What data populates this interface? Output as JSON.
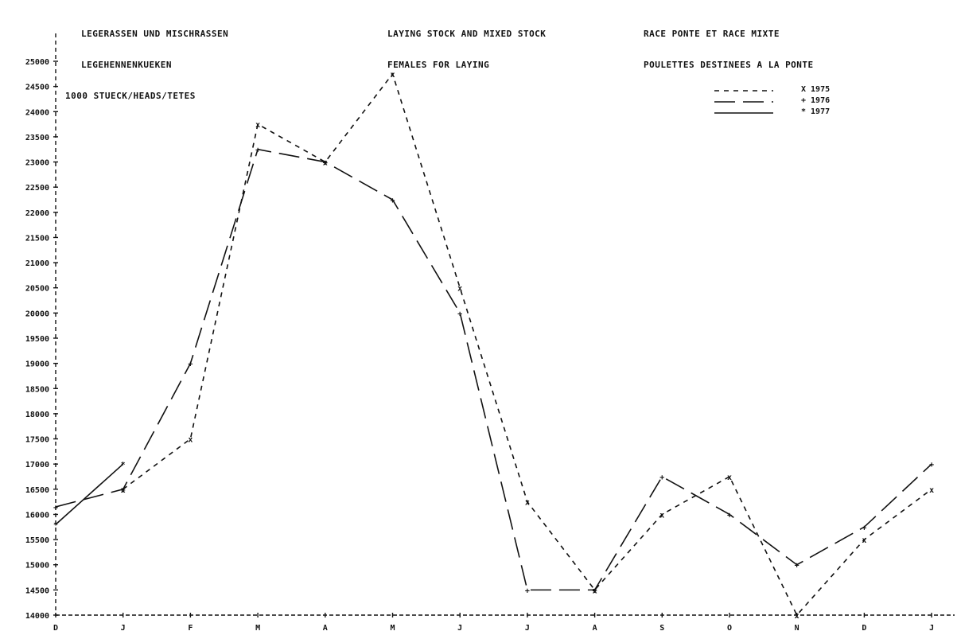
{
  "headers": {
    "de": [
      "LEGERASSEN UND MISCHRASSEN",
      "LEGEHENNENKUEKEN",
      "1000 STUECK/HEADS/TETES"
    ],
    "en": [
      "LAYING STOCK AND MIXED STOCK",
      "FEMALES FOR LAYING"
    ],
    "fr": [
      "RACE PONTE ET RACE MIXTE",
      "POULETTES DESTINEES A LA PONTE"
    ]
  },
  "chart_data": {
    "type": "line",
    "title": "",
    "ylabel": "1000 STUECK/HEADS/TETES",
    "ylim": [
      14000,
      25000
    ],
    "ystep": 500,
    "categories": [
      "D",
      "J",
      "F",
      "M",
      "A",
      "M",
      "J",
      "J",
      "A",
      "S",
      "O",
      "N",
      "D",
      "J"
    ],
    "legend": {
      "position": "top-right"
    },
    "series": [
      {
        "name": "1975",
        "marker": "X",
        "dash": "short",
        "values": [
          null,
          16500,
          17500,
          23750,
          23000,
          24750,
          20500,
          16250,
          14500,
          16000,
          16750,
          14000,
          15500,
          16500
        ]
      },
      {
        "name": "1976",
        "marker": "+",
        "dash": "long",
        "values": [
          16150,
          16500,
          19000,
          23250,
          23000,
          22250,
          20000,
          14500,
          14500,
          16750,
          16000,
          15000,
          15750,
          17000
        ]
      },
      {
        "name": "1977",
        "marker": "*",
        "dash": "solid",
        "values": [
          15800,
          17000,
          null,
          null,
          null,
          null,
          null,
          null,
          null,
          null,
          null,
          null,
          null,
          null
        ]
      }
    ]
  }
}
